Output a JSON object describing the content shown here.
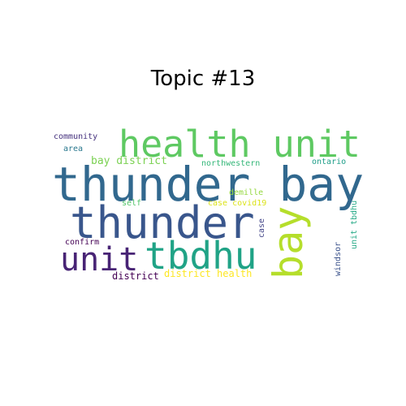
{
  "title": "Topic #13",
  "words": [
    {
      "text": "health unit",
      "color": "#5ec962"
    },
    {
      "text": "thunder bay",
      "color": "#31688e"
    },
    {
      "text": "thunder",
      "color": "#39568c"
    },
    {
      "text": "unit",
      "color": "#482475"
    },
    {
      "text": "tbdhu",
      "color": "#20a386"
    },
    {
      "text": "bay",
      "color": "#b5de2b"
    },
    {
      "text": "bay district",
      "color": "#7ad151"
    },
    {
      "text": "community",
      "color": "#46327e"
    },
    {
      "text": "area",
      "color": "#2a788e"
    },
    {
      "text": "northwestern",
      "color": "#35b779"
    },
    {
      "text": "ontario",
      "color": "#1f9e89"
    },
    {
      "text": "demille",
      "color": "#95d840"
    },
    {
      "text": "case covid19",
      "color": "#dce319"
    },
    {
      "text": "self",
      "color": "#52c569"
    },
    {
      "text": "case",
      "color": "#414487"
    },
    {
      "text": "unit tbdhu",
      "color": "#22a884"
    },
    {
      "text": "confirm",
      "color": "#440154"
    },
    {
      "text": "district",
      "color": "#440154"
    },
    {
      "text": "district health",
      "color": "#fde725"
    },
    {
      "text": "windsor",
      "color": "#3b528b"
    }
  ]
}
